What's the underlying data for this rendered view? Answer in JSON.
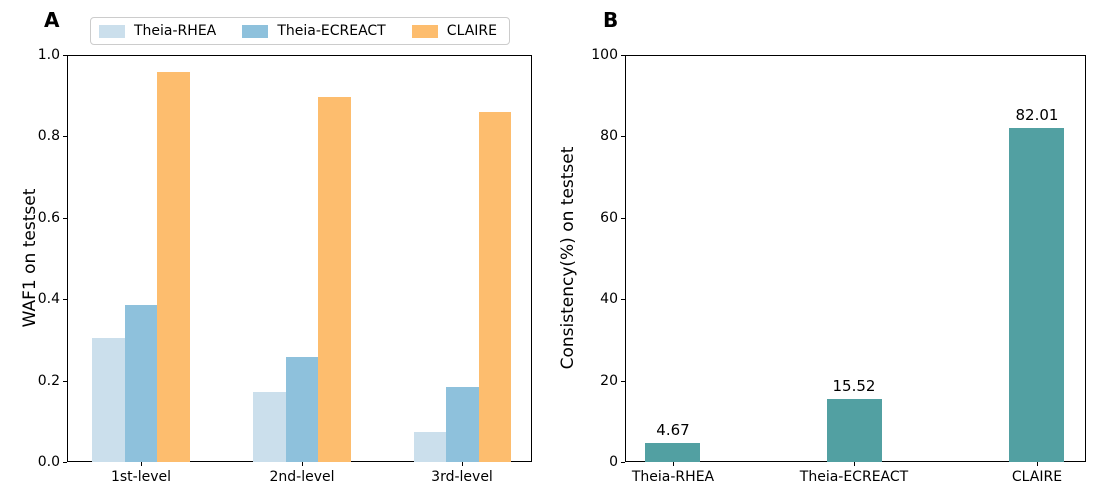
{
  "figure": {
    "panel_a_label": "A",
    "panel_b_label": "B"
  },
  "colors": {
    "axis": "#000000",
    "legend_border": "#cccccc",
    "theia_rhea": "#cbdfec",
    "theia_ecreact": "#8ec1dc",
    "claire": "#fdbd6e",
    "consistency_bar": "#52a0a2"
  },
  "chart_data": [
    {
      "type": "bar",
      "panel_label": "A",
      "ylabel": "WAF1 on testset",
      "xlabel": "",
      "categories": [
        "1st-level",
        "2nd-level",
        "3rd-level"
      ],
      "series": [
        {
          "name": "Theia-RHEA",
          "color": "#cbdfec",
          "values": [
            0.305,
            0.172,
            0.073
          ]
        },
        {
          "name": "Theia-ECREACT",
          "color": "#8ec1dc",
          "values": [
            0.385,
            0.258,
            0.185
          ]
        },
        {
          "name": "CLAIRE",
          "color": "#fdbd6e",
          "values": [
            0.958,
            0.897,
            0.86
          ]
        }
      ],
      "ylim": [
        0,
        1.0
      ],
      "yticks": [
        0,
        0.2,
        0.4,
        0.6,
        0.8,
        1.0
      ],
      "ytick_labels": [
        "0.0",
        "0.2",
        "0.4",
        "0.6",
        "0.8",
        "1.0"
      ],
      "legend_position": "top",
      "grid": false
    },
    {
      "type": "bar",
      "panel_label": "B",
      "ylabel": "Consistency(%) on testset",
      "xlabel": "",
      "categories": [
        "Theia-RHEA",
        "Theia-ECREACT",
        "CLAIRE"
      ],
      "series": [
        {
          "name": "Consistency",
          "color": "#52a0a2",
          "values": [
            4.67,
            15.52,
            82.01
          ]
        }
      ],
      "bar_labels": [
        "4.67",
        "15.52",
        "82.01"
      ],
      "ylim": [
        0,
        100
      ],
      "yticks": [
        0,
        20,
        40,
        60,
        80,
        100
      ],
      "ytick_labels": [
        "0",
        "20",
        "40",
        "60",
        "80",
        "100"
      ],
      "grid": false
    }
  ]
}
